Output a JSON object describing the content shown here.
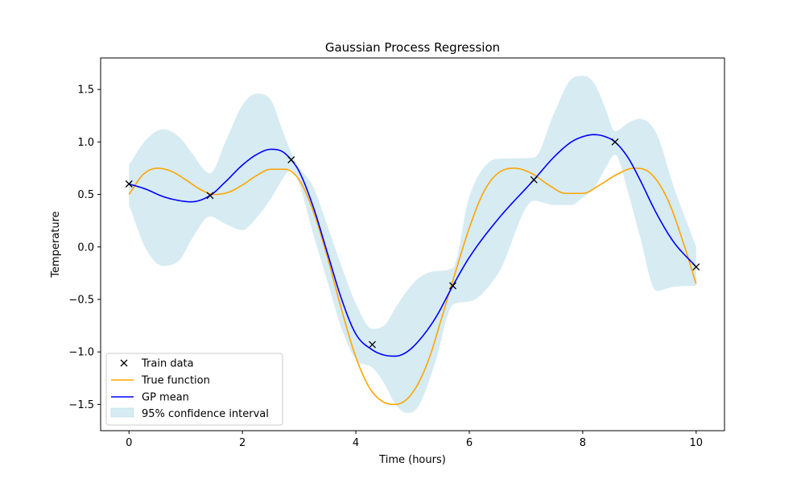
{
  "chart_data": {
    "type": "line",
    "title": "Gaussian Process Regression",
    "xlabel": "Time (hours)",
    "ylabel": "Temperature",
    "xlim": [
      -0.5,
      10.5
    ],
    "ylim": [
      -1.75,
      1.8
    ],
    "xticks": [
      0,
      2,
      4,
      6,
      8,
      10
    ],
    "yticks": [
      -1.5,
      -1.0,
      -0.5,
      0.0,
      0.5,
      1.0,
      1.5
    ],
    "xtick_labels": [
      "0",
      "2",
      "4",
      "6",
      "8",
      "10"
    ],
    "ytick_labels": [
      "−1.5",
      "−1.0",
      "−0.5",
      "0.0",
      "0.5",
      "1.0",
      "1.5"
    ],
    "grid": false,
    "legend_position": "lower-left",
    "legend": [
      "Train data",
      "True function",
      "GP mean",
      "95% confidence interval"
    ],
    "colors": {
      "train": "#000000",
      "true_function": "#ffa500",
      "gp_mean": "#0000ff",
      "confidence": "#add8e6"
    },
    "train_data": {
      "x": [
        0.0,
        1.43,
        2.86,
        4.29,
        5.71,
        7.14,
        8.57,
        10.0
      ],
      "y": [
        0.6,
        0.49,
        0.83,
        -0.93,
        -0.37,
        0.64,
        1.0,
        -0.19
      ]
    },
    "true_function": {
      "x": [
        0,
        0.25,
        0.5,
        0.75,
        1.0,
        1.25,
        1.5,
        1.75,
        2.0,
        2.25,
        2.5,
        2.75,
        3.0,
        3.25,
        3.5,
        3.75,
        4.0,
        4.25,
        4.5,
        4.7,
        4.9,
        5.1,
        5.3,
        5.5,
        5.75,
        6.0,
        6.25,
        6.5,
        6.8,
        7.1,
        7.4,
        7.7,
        8.0,
        8.3,
        8.6,
        8.9,
        9.2,
        9.5,
        9.75,
        10.0
      ],
      "y": [
        0.5,
        0.69,
        0.75,
        0.72,
        0.64,
        0.55,
        0.5,
        0.52,
        0.59,
        0.68,
        0.74,
        0.74,
        0.64,
        0.34,
        -0.1,
        -0.6,
        -1.05,
        -1.35,
        -1.48,
        -1.5,
        -1.45,
        -1.3,
        -1.05,
        -0.7,
        -0.25,
        0.18,
        0.52,
        0.7,
        0.75,
        0.7,
        0.59,
        0.51,
        0.51,
        0.59,
        0.69,
        0.75,
        0.7,
        0.45,
        0.08,
        -0.35
      ]
    },
    "gp_mean": {
      "x": [
        0,
        0.3,
        0.6,
        0.9,
        1.1,
        1.43,
        1.7,
        2.0,
        2.25,
        2.5,
        2.7,
        2.86,
        3.0,
        3.25,
        3.5,
        3.75,
        4.0,
        4.29,
        4.5,
        4.7,
        4.9,
        5.1,
        5.4,
        5.71,
        6.0,
        6.5,
        7.14,
        7.5,
        7.8,
        8.0,
        8.2,
        8.4,
        8.57,
        8.8,
        9.0,
        9.3,
        9.6,
        10.0
      ],
      "y": [
        0.6,
        0.55,
        0.48,
        0.44,
        0.43,
        0.49,
        0.62,
        0.78,
        0.88,
        0.93,
        0.91,
        0.83,
        0.72,
        0.38,
        -0.06,
        -0.5,
        -0.83,
        -0.98,
        -1.03,
        -1.04,
        -1.0,
        -0.9,
        -0.68,
        -0.37,
        -0.1,
        0.26,
        0.64,
        0.86,
        1.0,
        1.05,
        1.07,
        1.05,
        1.0,
        0.85,
        0.65,
        0.32,
        0.05,
        -0.19
      ]
    },
    "confidence_interval": {
      "x": [
        0,
        0.3,
        0.6,
        0.9,
        1.1,
        1.43,
        1.7,
        2.0,
        2.25,
        2.5,
        2.7,
        2.86,
        3.0,
        3.25,
        3.5,
        3.75,
        4.0,
        4.29,
        4.5,
        4.7,
        4.9,
        5.1,
        5.4,
        5.71,
        6.0,
        6.5,
        7.14,
        7.5,
        7.8,
        8.0,
        8.2,
        8.4,
        8.57,
        8.8,
        9.0,
        9.3,
        9.6,
        10.0
      ],
      "upper": [
        0.78,
        1.02,
        1.12,
        1.04,
        0.9,
        0.7,
        1.0,
        1.35,
        1.46,
        1.4,
        1.12,
        0.9,
        0.76,
        0.57,
        0.2,
        -0.19,
        -0.54,
        -0.78,
        -0.75,
        -0.58,
        -0.42,
        -0.3,
        -0.23,
        -0.2,
        0.48,
        0.84,
        0.85,
        1.28,
        1.6,
        1.63,
        1.56,
        1.32,
        1.1,
        1.18,
        1.22,
        1.08,
        0.58,
        0.0
      ],
      "lower": [
        0.4,
        -0.02,
        -0.18,
        -0.12,
        0.07,
        0.29,
        0.22,
        0.16,
        0.28,
        0.46,
        0.64,
        0.74,
        0.6,
        0.12,
        -0.33,
        -0.78,
        -1.07,
        -1.15,
        -1.3,
        -1.5,
        -1.58,
        -1.52,
        -1.1,
        -0.55,
        -0.52,
        -0.26,
        0.44,
        0.4,
        0.4,
        0.47,
        0.56,
        0.75,
        0.88,
        0.52,
        0.12,
        -0.42,
        -0.38,
        -0.37
      ]
    }
  }
}
